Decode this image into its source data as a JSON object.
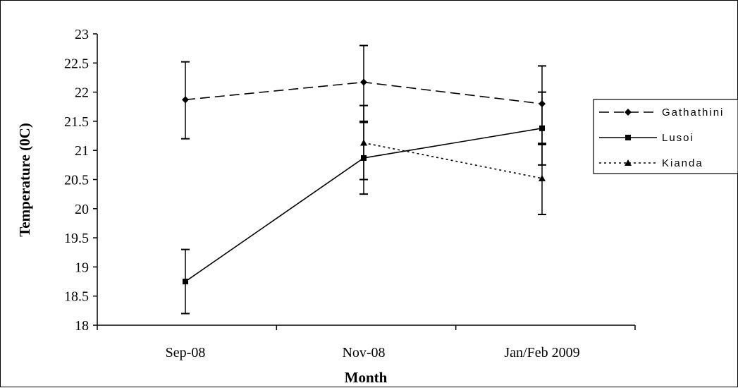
{
  "chart_data": {
    "type": "line",
    "title": "",
    "xlabel": "Month",
    "ylabel": "Temperature (0C)",
    "categories": [
      "Sep-08",
      "Nov-08",
      "Jan/Feb 2009"
    ],
    "ylim": [
      18,
      23
    ],
    "yticks": [
      "18",
      "18.5",
      "19",
      "19.5",
      "20",
      "20.5",
      "21",
      "21.5",
      "22",
      "22.5",
      "23"
    ],
    "grid": false,
    "legend_position": "right",
    "series": [
      {
        "name": "Gathathini",
        "style": "dashed",
        "marker": "diamond",
        "color": "#000000",
        "values": [
          21.87,
          22.17,
          21.8
        ],
        "error_bars": [
          [
            21.2,
            22.52
          ],
          [
            21.5,
            22.8
          ],
          [
            21.1,
            22.45
          ]
        ]
      },
      {
        "name": "Lusoi",
        "style": "solid",
        "marker": "square",
        "color": "#000000",
        "values": [
          18.75,
          20.87,
          21.38
        ],
        "error_bars": [
          [
            18.2,
            19.3
          ],
          [
            20.25,
            21.48
          ],
          [
            20.75,
            22.0
          ]
        ]
      },
      {
        "name": "Kianda",
        "style": "dotted",
        "marker": "triangle",
        "color": "#000000",
        "values": [
          null,
          21.13,
          20.52
        ],
        "error_bars": [
          null,
          [
            20.5,
            21.77
          ],
          [
            19.9,
            21.12
          ]
        ]
      }
    ]
  }
}
